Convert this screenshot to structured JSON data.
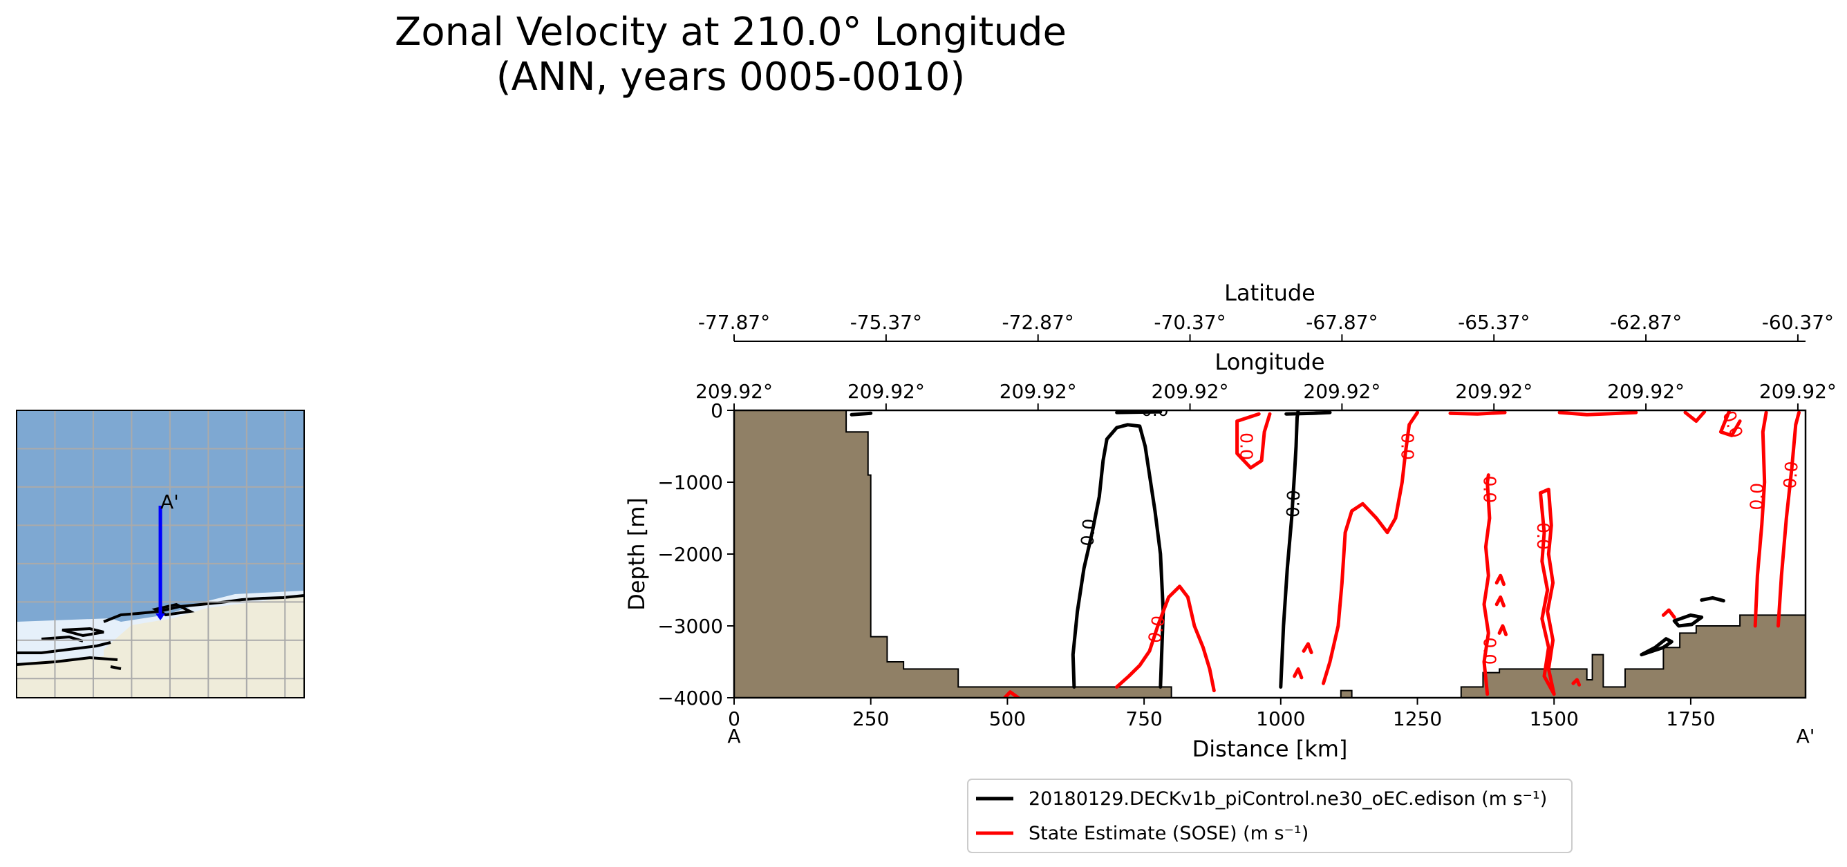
{
  "title": {
    "line1": "Zonal Velocity at 210.0° Longitude",
    "line2": "(ANN, years 0005-0010)"
  },
  "chart_data": {
    "type": "contour",
    "title": "Zonal Velocity at 210.0° Longitude (ANN, years 0005-0010)",
    "xlabel": "Distance [km]",
    "ylabel": "Depth [m]",
    "xlim": [
      0,
      1960
    ],
    "ylim": [
      -4000,
      0
    ],
    "x_ticks": [
      0,
      250,
      500,
      750,
      1000,
      1250,
      1500,
      1750
    ],
    "x_tick_labels": [
      "0",
      "250",
      "500",
      "750",
      "1000",
      "1250",
      "1500",
      "1750"
    ],
    "y_ticks": [
      0,
      -1000,
      -2000,
      -3000,
      -4000
    ],
    "y_tick_labels": [
      "0",
      "−1000",
      "−2000",
      "−3000",
      "−4000"
    ],
    "section_start_label": "A",
    "section_end_label": "A'",
    "latitude_axis": {
      "label": "Latitude",
      "ticks_km": [
        0,
        278,
        556,
        834,
        1112,
        1390,
        1668,
        1946
      ],
      "tick_labels": [
        "-77.87°",
        "-75.37°",
        "-72.87°",
        "-70.37°",
        "-67.87°",
        "-65.37°",
        "-62.87°",
        "-60.37°"
      ]
    },
    "longitude_axis": {
      "label": "Longitude",
      "ticks_km": [
        0,
        278,
        556,
        834,
        1112,
        1390,
        1668,
        1946
      ],
      "tick_labels": [
        "209.92°",
        "209.92°",
        "209.92°",
        "209.92°",
        "209.92°",
        "209.92°",
        "209.92°",
        "209.92°"
      ]
    },
    "bathymetry": [
      [
        0,
        0
      ],
      [
        205,
        0
      ],
      [
        205,
        -300
      ],
      [
        245,
        -300
      ],
      [
        245,
        -900
      ],
      [
        250,
        -900
      ],
      [
        250,
        -3150
      ],
      [
        280,
        -3150
      ],
      [
        280,
        -3500
      ],
      [
        310,
        -3500
      ],
      [
        310,
        -3600
      ],
      [
        410,
        -3600
      ],
      [
        410,
        -3850
      ],
      [
        800,
        -3850
      ],
      [
        800,
        -4000
      ],
      [
        1110,
        -4000
      ],
      [
        1110,
        -3900
      ],
      [
        1130,
        -3900
      ],
      [
        1130,
        -4000
      ],
      [
        1330,
        -4000
      ],
      [
        1330,
        -3850
      ],
      [
        1370,
        -3850
      ],
      [
        1370,
        -3650
      ],
      [
        1400,
        -3650
      ],
      [
        1400,
        -3600
      ],
      [
        1560,
        -3600
      ],
      [
        1560,
        -3750
      ],
      [
        1570,
        -3750
      ],
      [
        1570,
        -3400
      ],
      [
        1590,
        -3400
      ],
      [
        1590,
        -3850
      ],
      [
        1630,
        -3850
      ],
      [
        1630,
        -3600
      ],
      [
        1700,
        -3600
      ],
      [
        1700,
        -3300
      ],
      [
        1730,
        -3300
      ],
      [
        1730,
        -3100
      ],
      [
        1760,
        -3100
      ],
      [
        1760,
        -3000
      ],
      [
        1840,
        -3000
      ],
      [
        1840,
        -2850
      ],
      [
        1960,
        -2850
      ],
      [
        1960,
        -4000
      ]
    ],
    "series": [
      {
        "name": "20180129.DECKv1b_piControl.ne30_oEC.edison",
        "unit": "(m s⁻¹)",
        "color": "#000000",
        "contour_level": 0.0,
        "contours": [
          [
            [
              622,
              -3850
            ],
            [
              620,
              -3400
            ],
            [
              628,
              -2800
            ],
            [
              640,
              -2200
            ],
            [
              655,
              -1700
            ],
            [
              668,
              -1200
            ],
            [
              675,
              -700
            ],
            [
              682,
              -400
            ],
            [
              700,
              -240
            ],
            [
              720,
              -200
            ],
            [
              742,
              -220
            ],
            [
              752,
              -500
            ],
            [
              760,
              -900
            ],
            [
              770,
              -1400
            ],
            [
              780,
              -2000
            ],
            [
              785,
              -2800
            ],
            [
              780,
              -3850
            ]
          ],
          [
            [
              1000,
              -3850
            ],
            [
              1005,
              -3000
            ],
            [
              1012,
              -2200
            ],
            [
              1020,
              -1500
            ],
            [
              1025,
              -900
            ],
            [
              1028,
              -500
            ],
            [
              1030,
              -100
            ],
            [
              1032,
              0
            ]
          ],
          [
            [
              1010,
              -50
            ],
            [
              1060,
              -40
            ],
            [
              1090,
              -30
            ]
          ],
          [
            [
              215,
              -60
            ],
            [
              250,
              -40
            ]
          ],
          [
            [
              700,
              -30
            ],
            [
              780,
              -20
            ]
          ],
          [
            [
              1660,
              -3400
            ],
            [
              1700,
              -3300
            ],
            [
              1715,
              -3220
            ],
            [
              1705,
              -3180
            ],
            [
              1685,
              -3300
            ],
            [
              1660,
              -3400
            ]
          ],
          [
            [
              1720,
              -2930
            ],
            [
              1750,
              -2850
            ],
            [
              1770,
              -2880
            ],
            [
              1752,
              -2980
            ],
            [
              1728,
              -3000
            ],
            [
              1720,
              -2930
            ]
          ],
          [
            [
              1770,
              -2640
            ],
            [
              1790,
              -2610
            ],
            [
              1810,
              -2650
            ]
          ]
        ]
      },
      {
        "name": "State Estimate (SOSE)",
        "unit": "(m s⁻¹)",
        "color": "#ff0000",
        "contour_level": 0.0,
        "contours": [
          [
            [
              700,
              -3850
            ],
            [
              722,
              -3700
            ],
            [
              742,
              -3550
            ],
            [
              760,
              -3350
            ],
            [
              775,
              -3000
            ],
            [
              795,
              -2600
            ],
            [
              815,
              -2450
            ],
            [
              830,
              -2600
            ],
            [
              842,
              -3000
            ],
            [
              858,
              -3300
            ],
            [
              870,
              -3600
            ],
            [
              878,
              -3900
            ]
          ],
          [
            [
              1078,
              -3800
            ],
            [
              1090,
              -3500
            ],
            [
              1105,
              -3000
            ],
            [
              1112,
              -2400
            ],
            [
              1118,
              -1700
            ],
            [
              1130,
              -1400
            ],
            [
              1150,
              -1300
            ],
            [
              1175,
              -1500
            ],
            [
              1195,
              -1700
            ],
            [
              1210,
              -1500
            ],
            [
              1222,
              -1000
            ],
            [
              1228,
              -600
            ],
            [
              1235,
              -200
            ],
            [
              1250,
              -30
            ]
          ],
          [
            [
              960,
              -50
            ],
            [
              920,
              -150
            ],
            [
              920,
              -600
            ],
            [
              945,
              -800
            ],
            [
              965,
              -700
            ],
            [
              970,
              -300
            ],
            [
              980,
              -50
            ]
          ],
          [
            [
              1378,
              -3950
            ],
            [
              1372,
              -3500
            ],
            [
              1380,
              -3100
            ],
            [
              1372,
              -2700
            ],
            [
              1380,
              -2300
            ],
            [
              1375,
              -1900
            ],
            [
              1382,
              -1500
            ],
            [
              1378,
              -1000
            ],
            [
              1380,
              -900
            ]
          ],
          [
            [
              1500,
              -3950
            ],
            [
              1482,
              -3700
            ],
            [
              1490,
              -3300
            ],
            [
              1478,
              -2900
            ],
            [
              1488,
              -2500
            ],
            [
              1478,
              -2100
            ],
            [
              1482,
              -1700
            ],
            [
              1475,
              -1150
            ],
            [
              1490,
              -1100
            ],
            [
              1495,
              -1600
            ],
            [
              1490,
              -2000
            ],
            [
              1498,
              -2400
            ],
            [
              1488,
              -2800
            ],
            [
              1498,
              -3200
            ],
            [
              1490,
              -3600
            ],
            [
              1500,
              -3950
            ]
          ],
          [
            [
              1868,
              -3000
            ],
            [
              1872,
              -2300
            ],
            [
              1880,
              -1600
            ],
            [
              1885,
              -1000
            ],
            [
              1882,
              -300
            ],
            [
              1888,
              -30
            ]
          ],
          [
            [
              1910,
              -3000
            ],
            [
              1916,
              -2300
            ],
            [
              1925,
              -1500
            ],
            [
              1935,
              -800
            ],
            [
              1942,
              -200
            ],
            [
              1948,
              -30
            ]
          ],
          [
            [
              1510,
              -30
            ],
            [
              1560,
              -60
            ],
            [
              1620,
              -40
            ],
            [
              1650,
              -30
            ]
          ],
          [
            [
              1310,
              -40
            ],
            [
              1360,
              -50
            ],
            [
              1410,
              -30
            ]
          ],
          [
            [
              1740,
              -30
            ],
            [
              1760,
              -150
            ],
            [
              1775,
              -20
            ]
          ],
          [
            [
              1820,
              -20
            ],
            [
              1805,
              -300
            ],
            [
              1825,
              -350
            ],
            [
              1840,
              -150
            ]
          ],
          [
            [
              495,
              -4000
            ],
            [
              505,
              -3920
            ],
            [
              520,
              -4000
            ]
          ],
          [
            [
              1025,
              -3700
            ],
            [
              1032,
              -3600
            ],
            [
              1038,
              -3720
            ]
          ],
          [
            [
              1042,
              -3350
            ],
            [
              1050,
              -3250
            ],
            [
              1056,
              -3370
            ]
          ],
          [
            [
              1395,
              -2400
            ],
            [
              1402,
              -2300
            ],
            [
              1408,
              -2420
            ]
          ],
          [
            [
              1395,
              -2700
            ],
            [
              1402,
              -2600
            ],
            [
              1408,
              -2720
            ]
          ],
          [
            [
              1400,
              -3100
            ],
            [
              1406,
              -3000
            ],
            [
              1412,
              -3120
            ]
          ],
          [
            [
              1535,
              -3800
            ],
            [
              1542,
              -3750
            ],
            [
              1546,
              -3820
            ]
          ],
          [
            [
              1700,
              -2850
            ],
            [
              1710,
              -2780
            ],
            [
              1720,
              -2880
            ]
          ]
        ],
        "labels_shown": [
          "0.0",
          "0.0",
          "0.0",
          "0.0",
          "0.0",
          "0.0",
          "0.0",
          "0.0"
        ]
      }
    ],
    "contour_label_text": "0.0",
    "legend": {
      "placement": "bottom-center",
      "entries": [
        {
          "label": "20180129.DECKv1b_piControl.ne30_oEC.edison (m s⁻¹)",
          "color": "#000000"
        },
        {
          "label": "State Estimate (SOSE) (m s⁻¹)",
          "color": "#ff0000"
        }
      ]
    }
  },
  "inset_map": {
    "name": "transect-location-map",
    "section_end_label": "A'",
    "colors": {
      "ocean": "#7ea8d2",
      "ice_shelf": "#e6f0fa",
      "land": "#efecda",
      "transect": "#0000ff",
      "grid": "#aaaaaa"
    }
  },
  "colors": {
    "bathymetry_fill": "#908066",
    "model": "#000000",
    "obs": "#ff0000"
  }
}
